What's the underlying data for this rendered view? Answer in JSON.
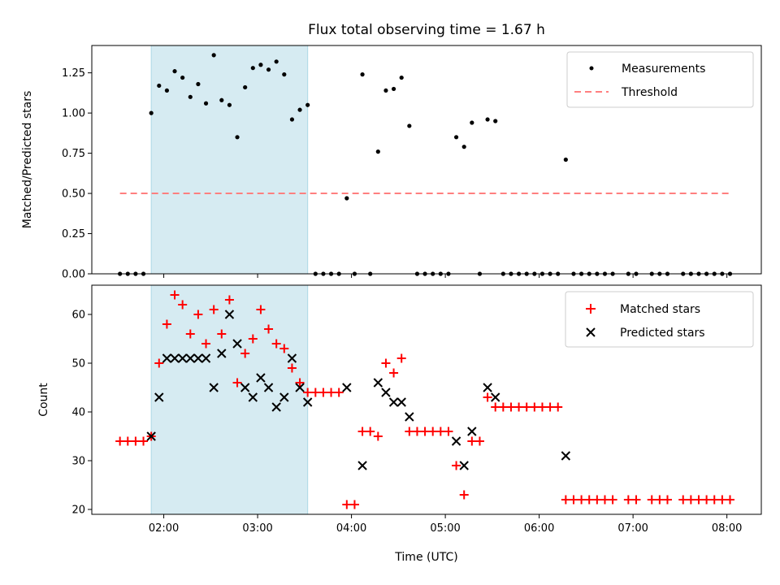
{
  "chart_data": {
    "type": "scatter",
    "title": "Flux total observing time = 1.67 h",
    "shaded_interval": [
      "01:52",
      "03:32"
    ],
    "shade_color": "#add8e6",
    "xlabel": "Time (UTC)",
    "xlim": [
      "01:14",
      "08:22"
    ],
    "xticks": [
      "02:00",
      "03:00",
      "04:00",
      "05:00",
      "06:00",
      "07:00",
      "08:00"
    ],
    "panels": [
      {
        "ylabel": "Matched/Predicted stars",
        "ylim": [
          0,
          1.42
        ],
        "yticks": [
          "0.00",
          "0.25",
          "0.50",
          "0.75",
          "1.00",
          "1.25"
        ],
        "legend_position": "top-right",
        "series": [
          {
            "name": "Measurements",
            "marker": "dot",
            "color": "#000000",
            "points": [
              [
                "01:32",
                0
              ],
              [
                "01:37",
                0
              ],
              [
                "01:42",
                0
              ],
              [
                "01:47",
                0
              ],
              [
                "01:52",
                1.0
              ],
              [
                "01:57",
                1.17
              ],
              [
                "02:02",
                1.14
              ],
              [
                "02:07",
                1.26
              ],
              [
                "02:12",
                1.22
              ],
              [
                "02:17",
                1.1
              ],
              [
                "02:22",
                1.18
              ],
              [
                "02:27",
                1.06
              ],
              [
                "02:32",
                1.36
              ],
              [
                "02:37",
                1.08
              ],
              [
                "02:42",
                1.05
              ],
              [
                "02:47",
                0.85
              ],
              [
                "02:52",
                1.16
              ],
              [
                "02:57",
                1.28
              ],
              [
                "03:02",
                1.3
              ],
              [
                "03:07",
                1.27
              ],
              [
                "03:12",
                1.32
              ],
              [
                "03:17",
                1.24
              ],
              [
                "03:22",
                0.96
              ],
              [
                "03:27",
                1.02
              ],
              [
                "03:32",
                1.05
              ],
              [
                "03:37",
                0
              ],
              [
                "03:42",
                0
              ],
              [
                "03:47",
                0
              ],
              [
                "03:52",
                0
              ],
              [
                "03:57",
                0.47
              ],
              [
                "04:02",
                0
              ],
              [
                "04:07",
                1.24
              ],
              [
                "04:12",
                0
              ],
              [
                "04:17",
                0.76
              ],
              [
                "04:22",
                1.14
              ],
              [
                "04:27",
                1.15
              ],
              [
                "04:32",
                1.22
              ],
              [
                "04:37",
                0.92
              ],
              [
                "04:42",
                0
              ],
              [
                "04:47",
                0
              ],
              [
                "04:52",
                0
              ],
              [
                "04:57",
                0
              ],
              [
                "05:02",
                0
              ],
              [
                "05:07",
                0.85
              ],
              [
                "05:12",
                0.79
              ],
              [
                "05:17",
                0.94
              ],
              [
                "05:22",
                0
              ],
              [
                "05:27",
                0.96
              ],
              [
                "05:32",
                0.95
              ],
              [
                "05:37",
                0
              ],
              [
                "05:42",
                0
              ],
              [
                "05:47",
                0
              ],
              [
                "05:52",
                0
              ],
              [
                "05:57",
                0
              ],
              [
                "06:02",
                0
              ],
              [
                "06:07",
                0
              ],
              [
                "06:12",
                0
              ],
              [
                "06:17",
                0.71
              ],
              [
                "06:22",
                0
              ],
              [
                "06:27",
                0
              ],
              [
                "06:32",
                0
              ],
              [
                "06:37",
                0
              ],
              [
                "06:42",
                0
              ],
              [
                "06:47",
                0
              ],
              [
                "06:57",
                0
              ],
              [
                "07:02",
                0
              ],
              [
                "07:12",
                0
              ],
              [
                "07:17",
                0
              ],
              [
                "07:22",
                0
              ],
              [
                "07:32",
                0
              ],
              [
                "07:37",
                0
              ],
              [
                "07:42",
                0
              ],
              [
                "07:47",
                0
              ],
              [
                "07:52",
                0
              ],
              [
                "07:57",
                0
              ],
              [
                "08:02",
                0
              ]
            ]
          },
          {
            "name": "Threshold",
            "marker": "dashed-line",
            "color": "#ff7f7f",
            "points": [
              [
                "01:32",
                0.5
              ],
              [
                "08:02",
                0.5
              ]
            ]
          }
        ]
      },
      {
        "ylabel": "Count",
        "ylim": [
          19,
          66
        ],
        "yticks": [
          "20",
          "30",
          "40",
          "50",
          "60"
        ],
        "legend_position": "top-right",
        "series": [
          {
            "name": "Matched stars",
            "marker": "plus",
            "color": "#ff0000",
            "points": [
              [
                "01:32",
                34
              ],
              [
                "01:37",
                34
              ],
              [
                "01:42",
                34
              ],
              [
                "01:47",
                34
              ],
              [
                "01:52",
                35
              ],
              [
                "01:57",
                50
              ],
              [
                "02:02",
                58
              ],
              [
                "02:07",
                64
              ],
              [
                "02:12",
                62
              ],
              [
                "02:17",
                56
              ],
              [
                "02:22",
                60
              ],
              [
                "02:27",
                54
              ],
              [
                "02:32",
                61
              ],
              [
                "02:37",
                56
              ],
              [
                "02:42",
                63
              ],
              [
                "02:47",
                46
              ],
              [
                "02:52",
                52
              ],
              [
                "02:57",
                55
              ],
              [
                "03:02",
                61
              ],
              [
                "03:07",
                57
              ],
              [
                "03:12",
                54
              ],
              [
                "03:17",
                53
              ],
              [
                "03:22",
                49
              ],
              [
                "03:27",
                46
              ],
              [
                "03:32",
                44
              ],
              [
                "03:37",
                44
              ],
              [
                "03:42",
                44
              ],
              [
                "03:47",
                44
              ],
              [
                "03:52",
                44
              ],
              [
                "03:57",
                21
              ],
              [
                "04:02",
                21
              ],
              [
                "04:07",
                36
              ],
              [
                "04:12",
                36
              ],
              [
                "04:17",
                35
              ],
              [
                "04:22",
                50
              ],
              [
                "04:27",
                48
              ],
              [
                "04:32",
                51
              ],
              [
                "04:37",
                36
              ],
              [
                "04:42",
                36
              ],
              [
                "04:47",
                36
              ],
              [
                "04:52",
                36
              ],
              [
                "04:57",
                36
              ],
              [
                "05:02",
                36
              ],
              [
                "05:07",
                29
              ],
              [
                "05:12",
                23
              ],
              [
                "05:17",
                34
              ],
              [
                "05:22",
                34
              ],
              [
                "05:27",
                43
              ],
              [
                "05:32",
                41
              ],
              [
                "05:37",
                41
              ],
              [
                "05:42",
                41
              ],
              [
                "05:47",
                41
              ],
              [
                "05:52",
                41
              ],
              [
                "05:57",
                41
              ],
              [
                "06:02",
                41
              ],
              [
                "06:07",
                41
              ],
              [
                "06:12",
                41
              ],
              [
                "06:17",
                22
              ],
              [
                "06:22",
                22
              ],
              [
                "06:27",
                22
              ],
              [
                "06:32",
                22
              ],
              [
                "06:37",
                22
              ],
              [
                "06:42",
                22
              ],
              [
                "06:47",
                22
              ],
              [
                "06:57",
                22
              ],
              [
                "07:02",
                22
              ],
              [
                "07:12",
                22
              ],
              [
                "07:17",
                22
              ],
              [
                "07:22",
                22
              ],
              [
                "07:32",
                22
              ],
              [
                "07:37",
                22
              ],
              [
                "07:42",
                22
              ],
              [
                "07:47",
                22
              ],
              [
                "07:52",
                22
              ],
              [
                "07:57",
                22
              ],
              [
                "08:02",
                22
              ]
            ]
          },
          {
            "name": "Predicted stars",
            "marker": "x",
            "color": "#000000",
            "points": [
              [
                "01:52",
                35
              ],
              [
                "01:57",
                43
              ],
              [
                "02:02",
                51
              ],
              [
                "02:07",
                51
              ],
              [
                "02:12",
                51
              ],
              [
                "02:17",
                51
              ],
              [
                "02:22",
                51
              ],
              [
                "02:27",
                51
              ],
              [
                "02:32",
                45
              ],
              [
                "02:37",
                52
              ],
              [
                "02:42",
                60
              ],
              [
                "02:47",
                54
              ],
              [
                "02:52",
                45
              ],
              [
                "02:57",
                43
              ],
              [
                "03:02",
                47
              ],
              [
                "03:07",
                45
              ],
              [
                "03:12",
                41
              ],
              [
                "03:17",
                43
              ],
              [
                "03:22",
                51
              ],
              [
                "03:27",
                45
              ],
              [
                "03:32",
                42
              ],
              [
                "03:57",
                45
              ],
              [
                "04:07",
                29
              ],
              [
                "04:17",
                46
              ],
              [
                "04:22",
                44
              ],
              [
                "04:27",
                42
              ],
              [
                "04:32",
                42
              ],
              [
                "04:37",
                39
              ],
              [
                "05:07",
                34
              ],
              [
                "05:12",
                29
              ],
              [
                "05:17",
                36
              ],
              [
                "05:27",
                45
              ],
              [
                "05:32",
                43
              ],
              [
                "06:17",
                31
              ]
            ]
          }
        ]
      }
    ]
  }
}
